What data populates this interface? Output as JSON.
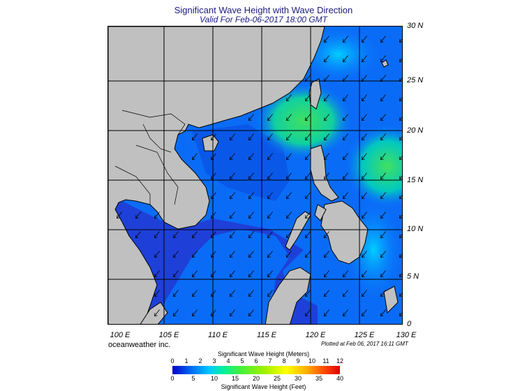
{
  "header": {
    "title": "Significant Wave Height with Wave Direction",
    "subtitle": "Valid For Feb-06-2017 18:00 GMT"
  },
  "map": {
    "lat_labels": [
      "30 N",
      "25 N",
      "20 N",
      "15 N",
      "10 N",
      "5 N",
      "0"
    ],
    "lon_labels": [
      "100 E",
      "105 E",
      "110 E",
      "115 E",
      "120 E",
      "125 E",
      "130 E"
    ],
    "extent": {
      "lon": [
        99,
        130
      ],
      "lat": [
        0,
        30
      ]
    },
    "wave_direction": "from northeast",
    "colors": {
      "land": "#c0c0c0",
      "deep_blue": "#1a3cd8",
      "mid_blue": "#0a74ff",
      "cyan": "#00c8ff",
      "green": "#30e060"
    }
  },
  "footer": {
    "brand": "oceanweather inc.",
    "plotted": "Plotted at Feb 06, 2017 16:11 GMT"
  },
  "colorbar": {
    "title_meters": "Significant Wave Height (Meters)",
    "title_feet": "Significant Wave Height (Feet)",
    "meters_ticks": [
      "0",
      "1",
      "2",
      "3",
      "4",
      "5",
      "6",
      "7",
      "8",
      "9",
      "10",
      "11",
      "12"
    ],
    "feet_ticks": [
      "0",
      "5",
      "10",
      "15",
      "20",
      "25",
      "30",
      "35",
      "40"
    ]
  }
}
